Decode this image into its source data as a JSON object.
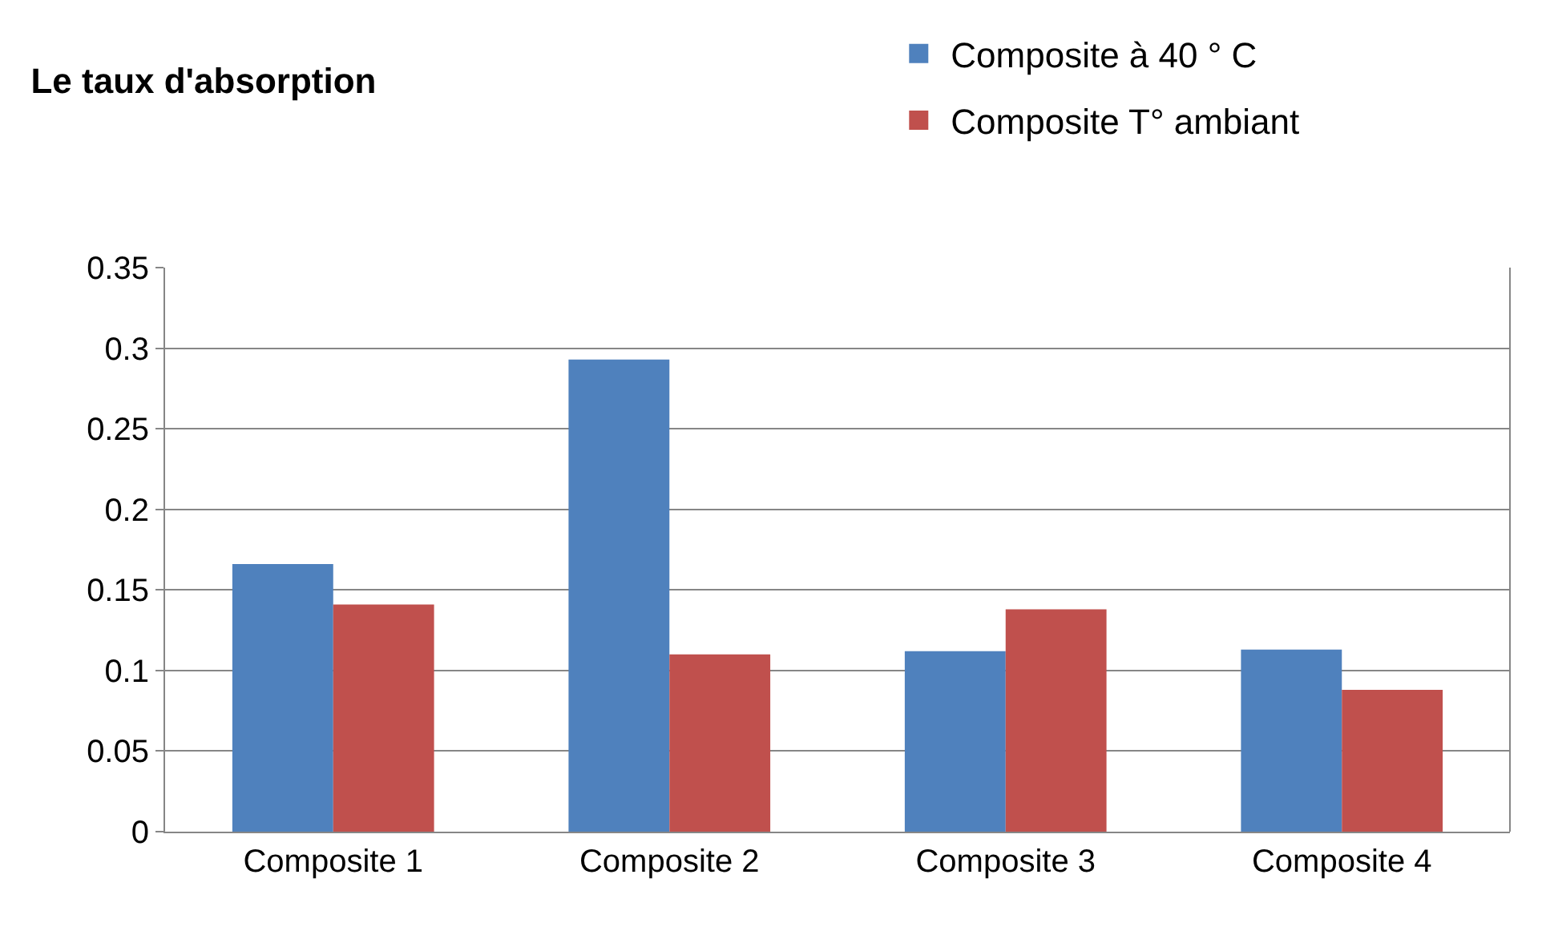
{
  "chart_data": {
    "type": "bar",
    "title": "Le taux d'absorption",
    "categories": [
      "Composite 1",
      "Composite 2",
      "Composite 3",
      "Composite 4"
    ],
    "series": [
      {
        "name": "Composite à 40 ° C",
        "color": "#4f81bd",
        "values": [
          0.166,
          0.293,
          0.112,
          0.113
        ]
      },
      {
        "name": "Composite T° ambiant",
        "color": "#c0504d",
        "values": [
          0.141,
          0.11,
          0.138,
          0.088
        ]
      }
    ],
    "ylim": [
      0,
      0.35
    ],
    "yticks": [
      0,
      0.05,
      0.1,
      0.15,
      0.2,
      0.25,
      0.3,
      0.35
    ],
    "grid": "y",
    "legend": "top right"
  }
}
